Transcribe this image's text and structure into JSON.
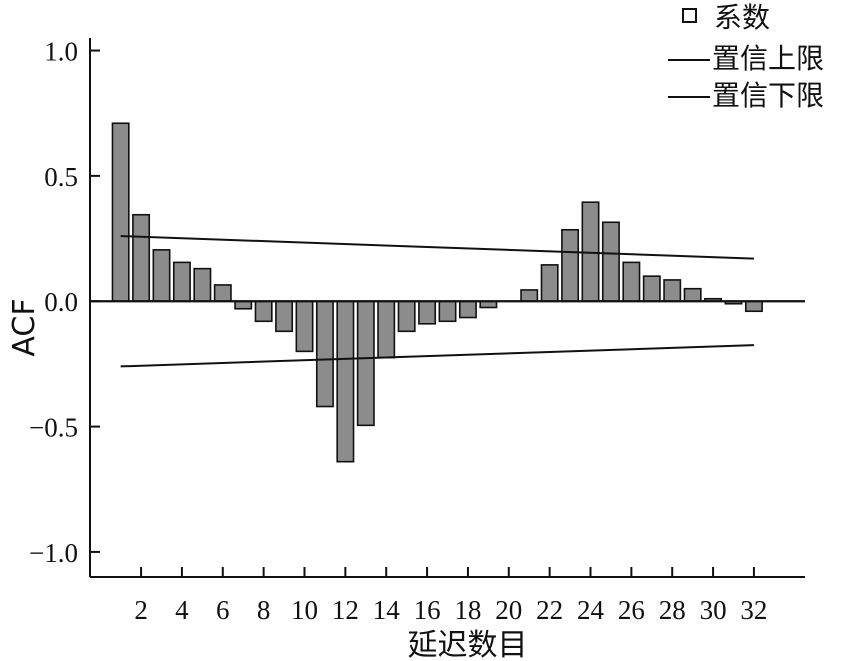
{
  "chart_data": {
    "type": "bar",
    "xlabel": "延迟数目",
    "ylabel": "ACF",
    "ylim": [
      -1.1,
      1.05
    ],
    "xlim": [
      -0.5,
      34.5
    ],
    "yticks": [
      1.0,
      0.5,
      0.0,
      -0.5,
      -1.0
    ],
    "ytick_labels": [
      "1.0",
      "0.5",
      "0.0",
      "−0.5",
      "−1.0"
    ],
    "xticks": [
      2,
      4,
      6,
      8,
      10,
      12,
      14,
      16,
      18,
      20,
      22,
      24,
      26,
      28,
      30,
      32
    ],
    "grid": false,
    "legend_position": "top-right",
    "x": [
      1,
      2,
      3,
      4,
      5,
      6,
      7,
      8,
      9,
      10,
      11,
      12,
      13,
      14,
      15,
      16,
      17,
      18,
      19,
      20,
      21,
      22,
      23,
      24,
      25,
      26,
      27,
      28,
      29,
      30,
      31,
      32
    ],
    "series": [
      {
        "name": "系数",
        "values": [
          0.71,
          0.345,
          0.205,
          0.155,
          0.13,
          0.065,
          -0.03,
          -0.08,
          -0.12,
          -0.2,
          -0.42,
          -0.64,
          -0.495,
          -0.225,
          -0.12,
          -0.09,
          -0.08,
          -0.065,
          -0.025,
          0.0,
          0.045,
          0.145,
          0.285,
          0.395,
          0.315,
          0.155,
          0.1,
          0.085,
          0.05,
          0.01,
          -0.01,
          -0.04
        ]
      },
      {
        "name": "置信上限",
        "type": "line",
        "x": [
          1,
          32
        ],
        "values": [
          0.26,
          0.17
        ]
      },
      {
        "name": "置信下限",
        "type": "line",
        "x": [
          1,
          32
        ],
        "values": [
          -0.26,
          -0.175
        ]
      }
    ]
  }
}
